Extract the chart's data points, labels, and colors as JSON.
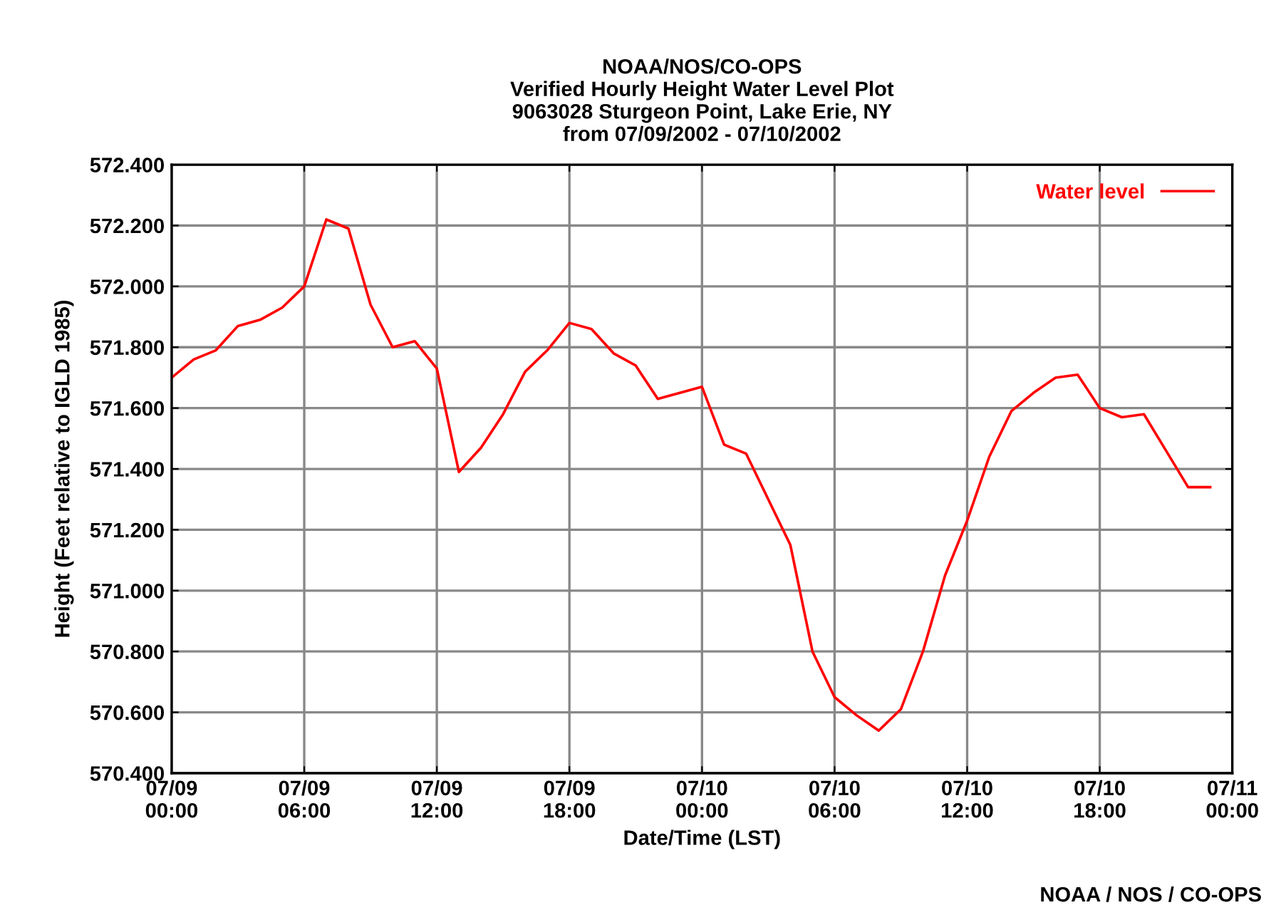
{
  "chart_data": {
    "type": "line",
    "title": "NOAA/NOS/CO-OPS\nVerified Hourly Height Water Level Plot\n9063028 Sturgeon Point, Lake Erie, NY\nfrom 07/09/2002 - 07/10/2002",
    "xlabel": "Date/Time (LST)",
    "ylabel": "Height (Feet relative to IGLD 1985)",
    "annotations": [
      "NOAA / NOS / CO-OPS"
    ],
    "x": [
      "2002-07-09T00:00",
      "2002-07-09T01:00",
      "2002-07-09T02:00",
      "2002-07-09T03:00",
      "2002-07-09T04:00",
      "2002-07-09T05:00",
      "2002-07-09T06:00",
      "2002-07-09T07:00",
      "2002-07-09T08:00",
      "2002-07-09T09:00",
      "2002-07-09T10:00",
      "2002-07-09T11:00",
      "2002-07-09T12:00",
      "2002-07-09T13:00",
      "2002-07-09T14:00",
      "2002-07-09T15:00",
      "2002-07-09T16:00",
      "2002-07-09T17:00",
      "2002-07-09T18:00",
      "2002-07-09T19:00",
      "2002-07-09T20:00",
      "2002-07-09T21:00",
      "2002-07-09T22:00",
      "2002-07-09T23:00",
      "2002-07-10T00:00",
      "2002-07-10T01:00",
      "2002-07-10T02:00",
      "2002-07-10T03:00",
      "2002-07-10T04:00",
      "2002-07-10T05:00",
      "2002-07-10T06:00",
      "2002-07-10T07:00",
      "2002-07-10T08:00",
      "2002-07-10T09:00",
      "2002-07-10T10:00",
      "2002-07-10T11:00",
      "2002-07-10T12:00",
      "2002-07-10T13:00",
      "2002-07-10T14:00",
      "2002-07-10T15:00",
      "2002-07-10T16:00",
      "2002-07-10T17:00",
      "2002-07-10T18:00",
      "2002-07-10T19:00",
      "2002-07-10T20:00",
      "2002-07-10T21:00",
      "2002-07-10T22:00",
      "2002-07-10T23:00"
    ],
    "series": [
      {
        "name": "Water level",
        "color": "#ff0000",
        "values": [
          571.7,
          571.76,
          571.79,
          571.87,
          571.89,
          571.93,
          572.0,
          572.22,
          572.19,
          571.94,
          571.8,
          571.82,
          571.73,
          571.39,
          571.47,
          571.58,
          571.72,
          571.79,
          571.88,
          571.86,
          571.78,
          571.74,
          571.63,
          571.65,
          571.67,
          571.48,
          571.45,
          571.3,
          571.15,
          570.8,
          570.65,
          570.59,
          570.54,
          570.61,
          570.8,
          571.05,
          571.23,
          571.44,
          571.59,
          571.65,
          571.7,
          571.71,
          571.6,
          571.57,
          571.58,
          571.46,
          571.34,
          571.34
        ]
      }
    ],
    "xlim": [
      "2002-07-09T00:00",
      "2002-07-11T00:00"
    ],
    "xticks": [
      {
        "value": "2002-07-09T00:00",
        "label": "07/09\n00:00"
      },
      {
        "value": "2002-07-09T06:00",
        "label": "07/09\n06:00"
      },
      {
        "value": "2002-07-09T12:00",
        "label": "07/09\n12:00"
      },
      {
        "value": "2002-07-09T18:00",
        "label": "07/09\n18:00"
      },
      {
        "value": "2002-07-10T00:00",
        "label": "07/10\n00:00"
      },
      {
        "value": "2002-07-10T06:00",
        "label": "07/10\n06:00"
      },
      {
        "value": "2002-07-10T12:00",
        "label": "07/10\n12:00"
      },
      {
        "value": "2002-07-10T18:00",
        "label": "07/10\n18:00"
      },
      {
        "value": "2002-07-11T00:00",
        "label": "07/11\n00:00"
      }
    ],
    "ylim": [
      570.4,
      572.4
    ],
    "yticks": [
      {
        "value": 570.4,
        "label": "570.400"
      },
      {
        "value": 570.6,
        "label": "570.600"
      },
      {
        "value": 570.8,
        "label": "570.800"
      },
      {
        "value": 571.0,
        "label": "571.000"
      },
      {
        "value": 571.2,
        "label": "571.200"
      },
      {
        "value": 571.4,
        "label": "571.400"
      },
      {
        "value": 571.6,
        "label": "571.600"
      },
      {
        "value": 571.8,
        "label": "571.800"
      },
      {
        "value": 572.0,
        "label": "572.000"
      },
      {
        "value": 572.2,
        "label": "572.200"
      },
      {
        "value": 572.4,
        "label": "572.400"
      }
    ],
    "grid": true,
    "legend": "top right",
    "line_style": "solid",
    "marker": "none"
  }
}
